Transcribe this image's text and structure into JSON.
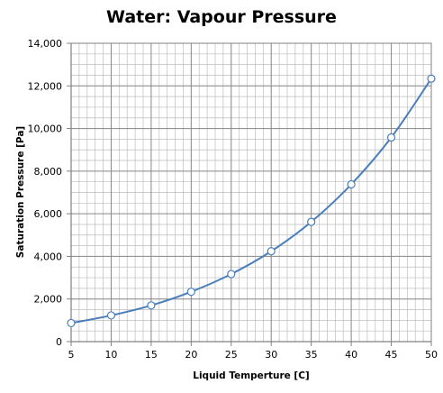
{
  "chart_data": {
    "type": "line",
    "title": "Water: Vapour Pressure",
    "xlabel": "Liquid Temperture [C]",
    "ylabel": "Saturation Pressure [Pa]",
    "xlim": [
      5,
      50
    ],
    "ylim": [
      0,
      14000
    ],
    "x_ticks": [
      5,
      10,
      15,
      20,
      25,
      30,
      35,
      40,
      45,
      50
    ],
    "x_tick_labels": [
      "5",
      "10",
      "15",
      "20",
      "25",
      "30",
      "35",
      "40",
      "45",
      "50"
    ],
    "y_ticks": [
      0,
      2000,
      4000,
      6000,
      8000,
      10000,
      12000,
      14000
    ],
    "y_tick_labels": [
      "0",
      "2,000",
      "4,000",
      "6,000",
      "8,000",
      "10,000",
      "12,000",
      "14,000"
    ],
    "grid": true,
    "minor_grid": true,
    "legend": false,
    "series": [
      {
        "x": [
          5,
          10,
          15,
          20,
          25,
          30,
          35,
          40,
          45,
          50
        ],
        "values": [
          870,
          1230,
          1700,
          2340,
          3170,
          4240,
          5620,
          7380,
          9580,
          12340
        ],
        "color": "#4a7ebb",
        "marker": "open-circle",
        "smooth": true
      }
    ]
  }
}
